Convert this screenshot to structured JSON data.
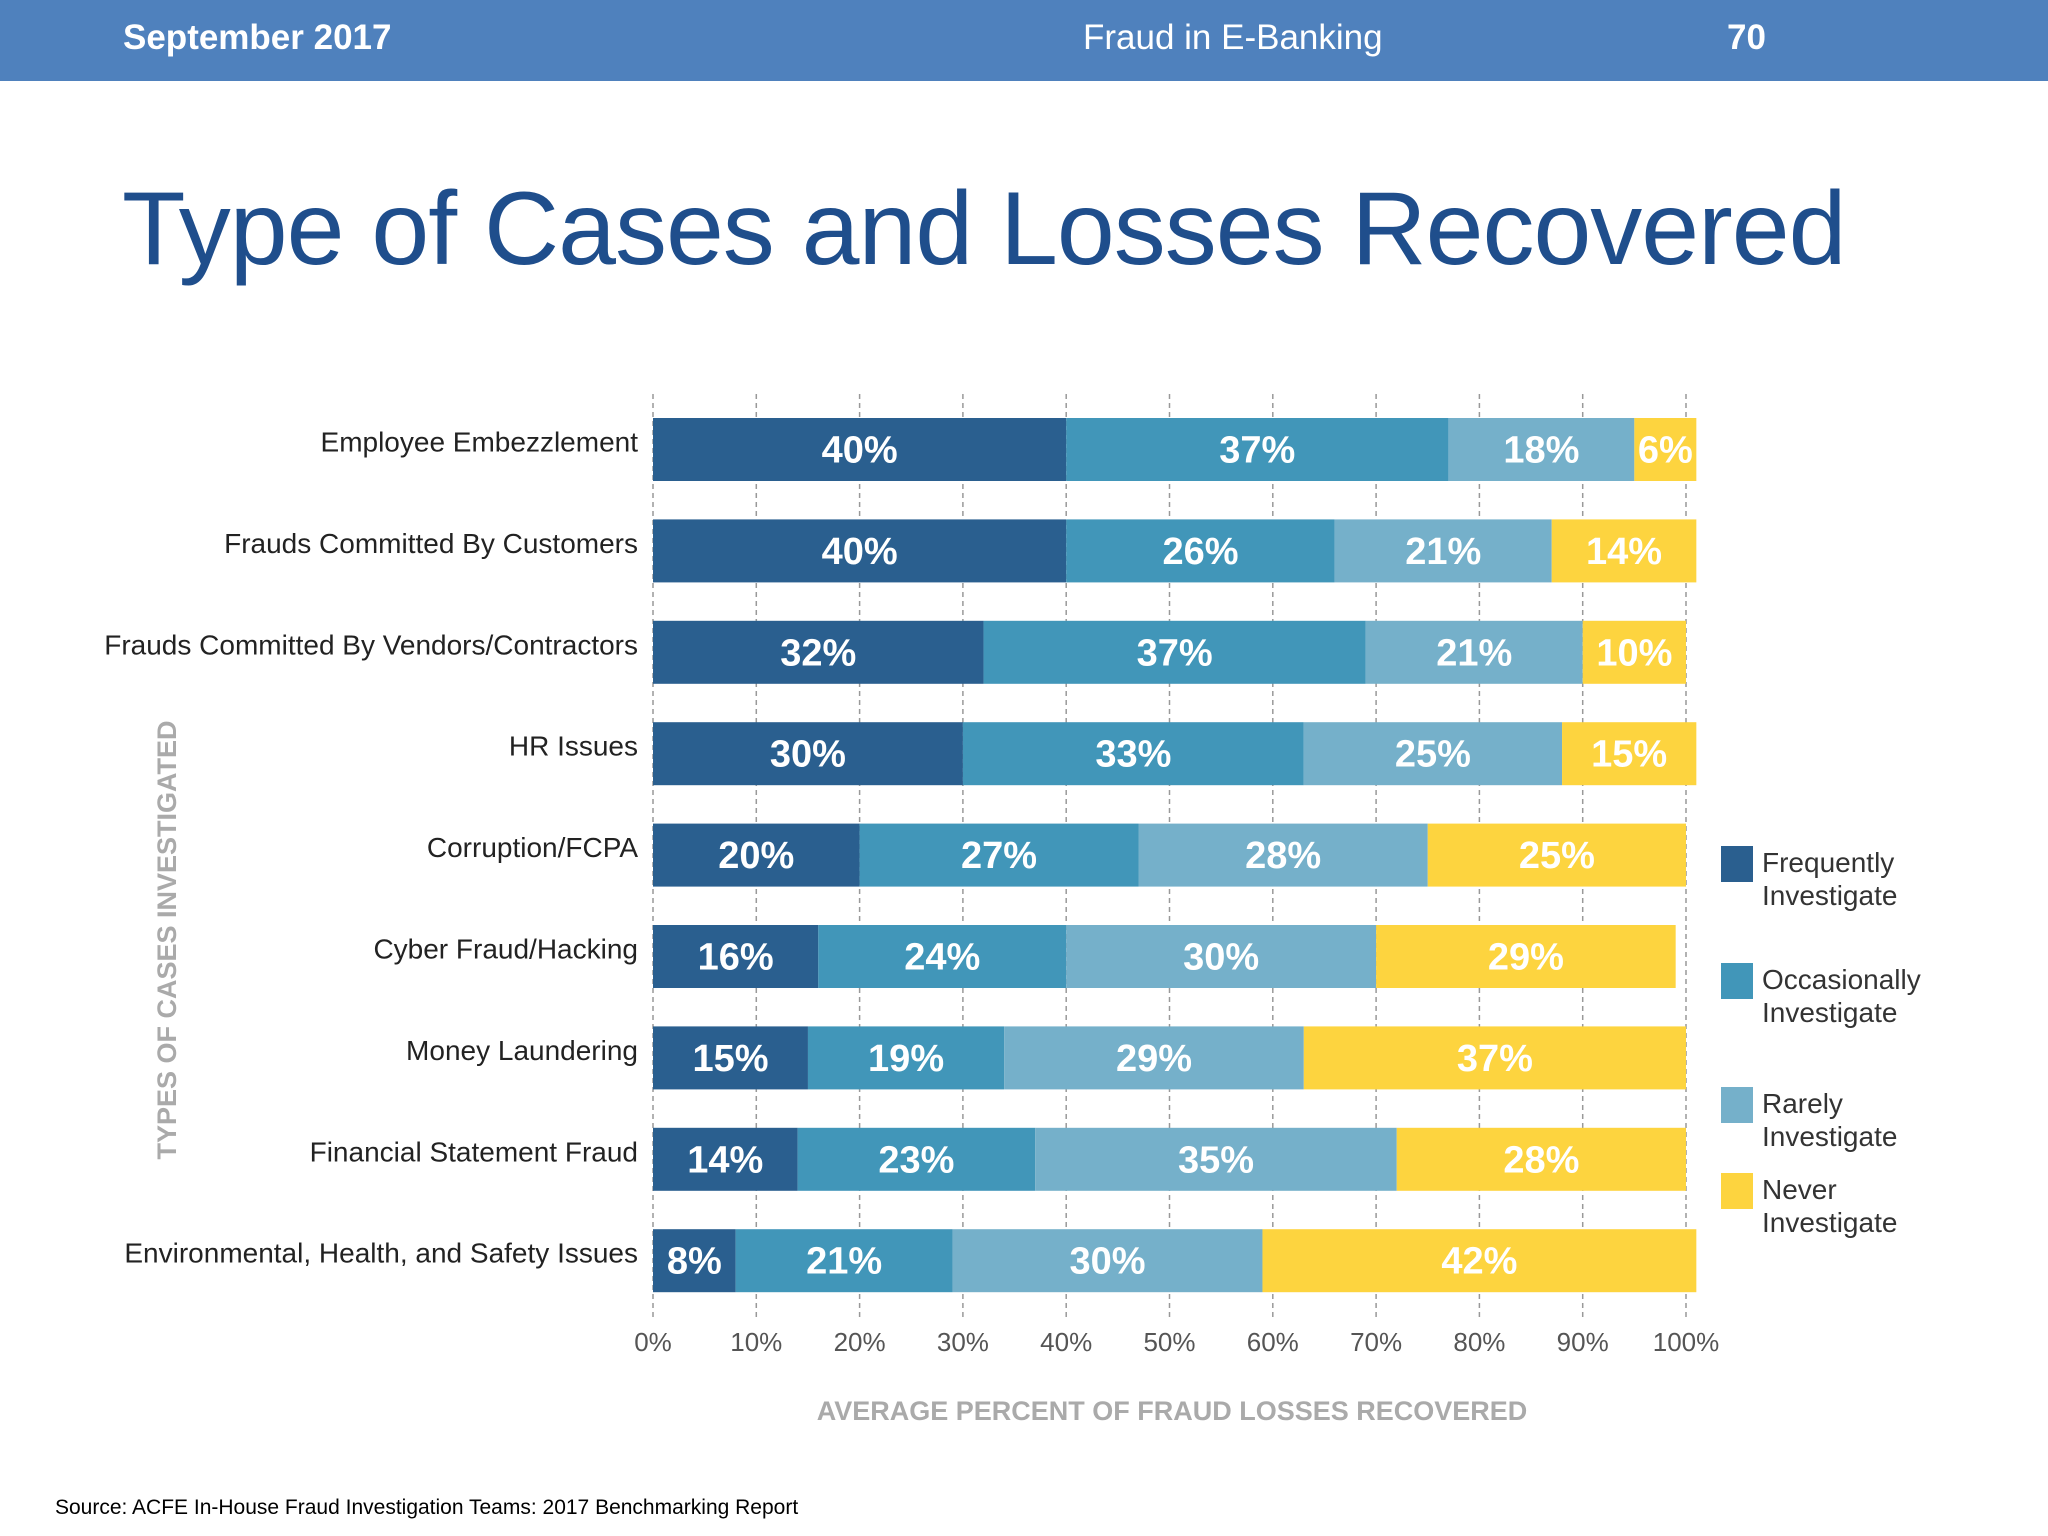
{
  "header": {
    "date": "September 2017",
    "topic": "Fraud in E-Banking",
    "page": "70"
  },
  "slide_title": "Type of Cases and Losses Recovered",
  "source": "Source: ACFE In-House Fraud Investigation Teams: 2017 Benchmarking Report",
  "chart_data": {
    "type": "bar",
    "orientation": "horizontal-stacked",
    "xlabel": "AVERAGE PERCENT OF FRAUD LOSSES RECOVERED",
    "ylabel": "TYPES OF CASES INVESTIGATED",
    "xlim": [
      0,
      100
    ],
    "xticks": [
      "0%",
      "10%",
      "20%",
      "30%",
      "40%",
      "50%",
      "60%",
      "70%",
      "80%",
      "90%",
      "100%"
    ],
    "grid": true,
    "legend_position": "right",
    "categories": [
      "Employee Embezzlement",
      "Frauds Committed By Customers",
      "Frauds Committed By Vendors/Contractors",
      "HR Issues",
      "Corruption/FCPA",
      "Cyber Fraud/Hacking",
      "Money Laundering",
      "Financial Statement Fraud",
      "Environmental, Health, and Safety Issues"
    ],
    "series": [
      {
        "name": "Frequently Investigate",
        "color": "#2a5f8f",
        "values": [
          40,
          40,
          32,
          30,
          20,
          16,
          15,
          14,
          8
        ]
      },
      {
        "name": "Occasionally Investigate",
        "color": "#4196b9",
        "values": [
          37,
          26,
          37,
          33,
          27,
          24,
          19,
          23,
          21
        ]
      },
      {
        "name": "Rarely Investigate",
        "color": "#75b0ca",
        "values": [
          18,
          21,
          21,
          25,
          28,
          30,
          29,
          35,
          30
        ]
      },
      {
        "name": "Never Investigate",
        "color": "#fdd43f",
        "values": [
          6,
          14,
          10,
          15,
          25,
          29,
          37,
          28,
          42
        ]
      }
    ]
  }
}
